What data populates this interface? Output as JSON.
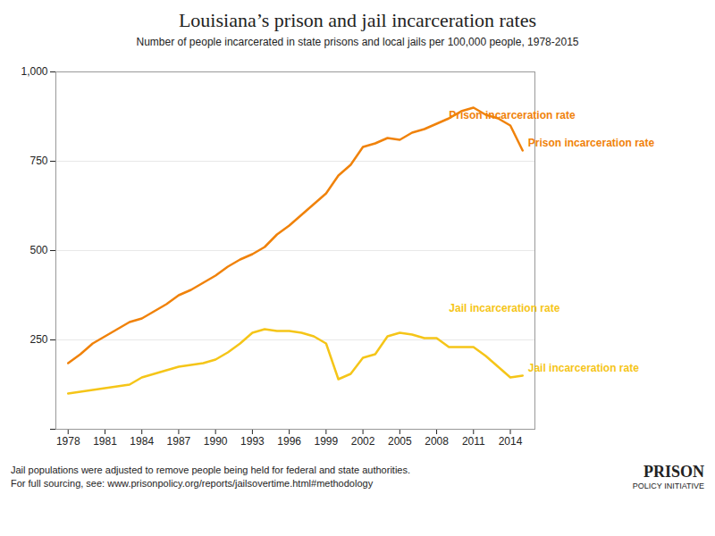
{
  "chart_data": {
    "type": "line",
    "title": "Louisiana’s prison and jail incarceration rates",
    "subtitle": "Number of people incarcerated in state prisons and local jails per 100,000 people, 1978-2015",
    "x": [
      1978,
      1979,
      1980,
      1981,
      1982,
      1983,
      1984,
      1985,
      1986,
      1987,
      1988,
      1989,
      1990,
      1991,
      1992,
      1993,
      1994,
      1995,
      1996,
      1997,
      1998,
      1999,
      2000,
      2001,
      2002,
      2003,
      2004,
      2005,
      2006,
      2007,
      2008,
      2009,
      2010,
      2011,
      2012,
      2013,
      2014,
      2015
    ],
    "series": [
      {
        "name": "Prison incarceration rate",
        "color": "#f0820a",
        "values": [
          185,
          210,
          240,
          260,
          280,
          300,
          310,
          330,
          350,
          375,
          390,
          410,
          430,
          455,
          475,
          490,
          510,
          545,
          570,
          600,
          630,
          660,
          710,
          740,
          790,
          800,
          815,
          810,
          830,
          840,
          855,
          870,
          890,
          900,
          880,
          870,
          850,
          780
        ]
      },
      {
        "name": "Jail incarceration rate",
        "color": "#f5c518",
        "values": [
          100,
          105,
          110,
          115,
          120,
          125,
          145,
          155,
          165,
          175,
          180,
          185,
          195,
          215,
          240,
          270,
          280,
          275,
          275,
          270,
          260,
          240,
          140,
          155,
          200,
          210,
          260,
          270,
          265,
          255,
          255,
          230,
          230,
          230,
          205,
          175,
          145,
          150
        ]
      }
    ],
    "xlim": [
      1977,
      2016
    ],
    "xticks": [
      1978,
      1981,
      1984,
      1987,
      1990,
      1993,
      1996,
      1999,
      2002,
      2005,
      2008,
      2011,
      2014
    ],
    "ylim": [
      0,
      1000
    ],
    "yticks": [
      {
        "value": 0,
        "label": null
      },
      250,
      500,
      750,
      {
        "value": 1000,
        "label": "1,000"
      }
    ],
    "grid": true,
    "annotations": [
      {
        "text": "Prison incarceration rate",
        "x": 2009,
        "y": 870,
        "color": "#f0820a"
      },
      {
        "text": "Jail incarceration rate",
        "x": 2009,
        "y": 330,
        "color": "#f5c518"
      }
    ],
    "footnotes": [
      "Jail populations were adjusted to remove people being held for federal and state authorities.",
      "For full sourcing, see: www.prisonpolicy.org/reports/jailsovertime.html#methodology"
    ],
    "credit": [
      "PRISON",
      "POLICY INITIATIVE"
    ]
  }
}
